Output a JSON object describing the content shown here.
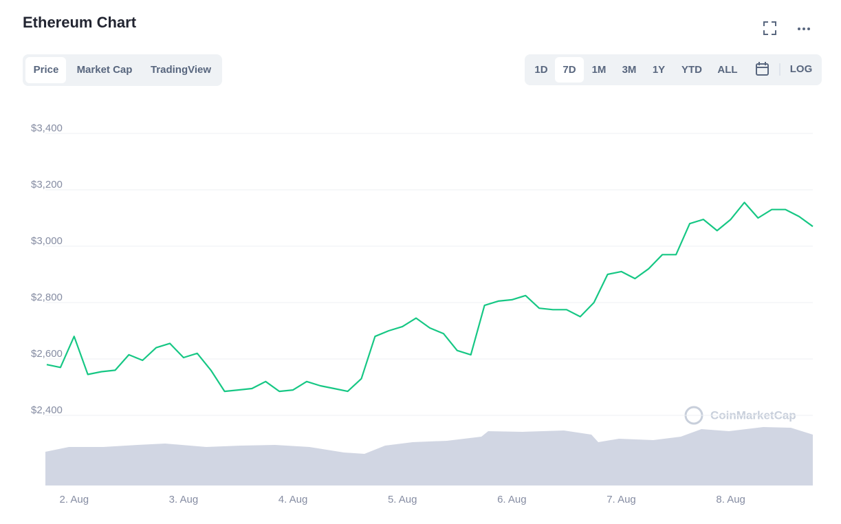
{
  "header": {
    "tabs": [
      "Price",
      "Market Cap",
      "TradingView"
    ],
    "ranges": [
      "1D",
      "7D",
      "1M",
      "3M",
      "1Y",
      "YTD",
      "ALL"
    ],
    "log": "LOG"
  },
  "watermark": "CoinMarketCap",
  "chart_data": {
    "type": "line",
    "title": "Ethereum Chart",
    "color": "#16c784",
    "grid": true,
    "categories": [
      null,
      null,
      "2. Aug",
      null,
      null,
      null,
      null,
      null,
      null,
      null,
      "3. Aug",
      null,
      null,
      null,
      null,
      null,
      null,
      null,
      "4. Aug",
      null,
      null,
      null,
      null,
      null,
      null,
      null,
      "5. Aug",
      null,
      null,
      null,
      null,
      null,
      null,
      null,
      "6. Aug",
      null,
      null,
      null,
      null,
      null,
      null,
      null,
      "7. Aug",
      null,
      null,
      null,
      null,
      null,
      null,
      null,
      "8. Aug",
      null,
      null,
      null,
      null,
      null,
      null
    ],
    "values": [
      2580,
      2570,
      2680,
      2545,
      2555,
      2560,
      2615,
      2595,
      2640,
      2655,
      2605,
      2620,
      2560,
      2485,
      2490,
      2495,
      2520,
      2485,
      2490,
      2520,
      2505,
      2495,
      2485,
      2530,
      2680,
      2700,
      2715,
      2745,
      2710,
      2690,
      2630,
      2615,
      2790,
      2805,
      2810,
      2825,
      2780,
      2775,
      2775,
      2750,
      2800,
      2900,
      2910,
      2885,
      2920,
      2970,
      2970,
      3080,
      3095,
      3055,
      3095,
      3155,
      3100,
      3130,
      3130,
      3105,
      3070
    ],
    "ylim": [
      2400,
      3400
    ],
    "yticks": [
      {
        "value": 2400,
        "label": "$2,400"
      },
      {
        "value": 2600,
        "label": "$2,600"
      },
      {
        "value": 2800,
        "label": "$2,800"
      },
      {
        "value": 3000,
        "label": "$3,000"
      },
      {
        "value": 3200,
        "label": "$3,200"
      },
      {
        "value": 3400,
        "label": "$3,400"
      }
    ]
  }
}
